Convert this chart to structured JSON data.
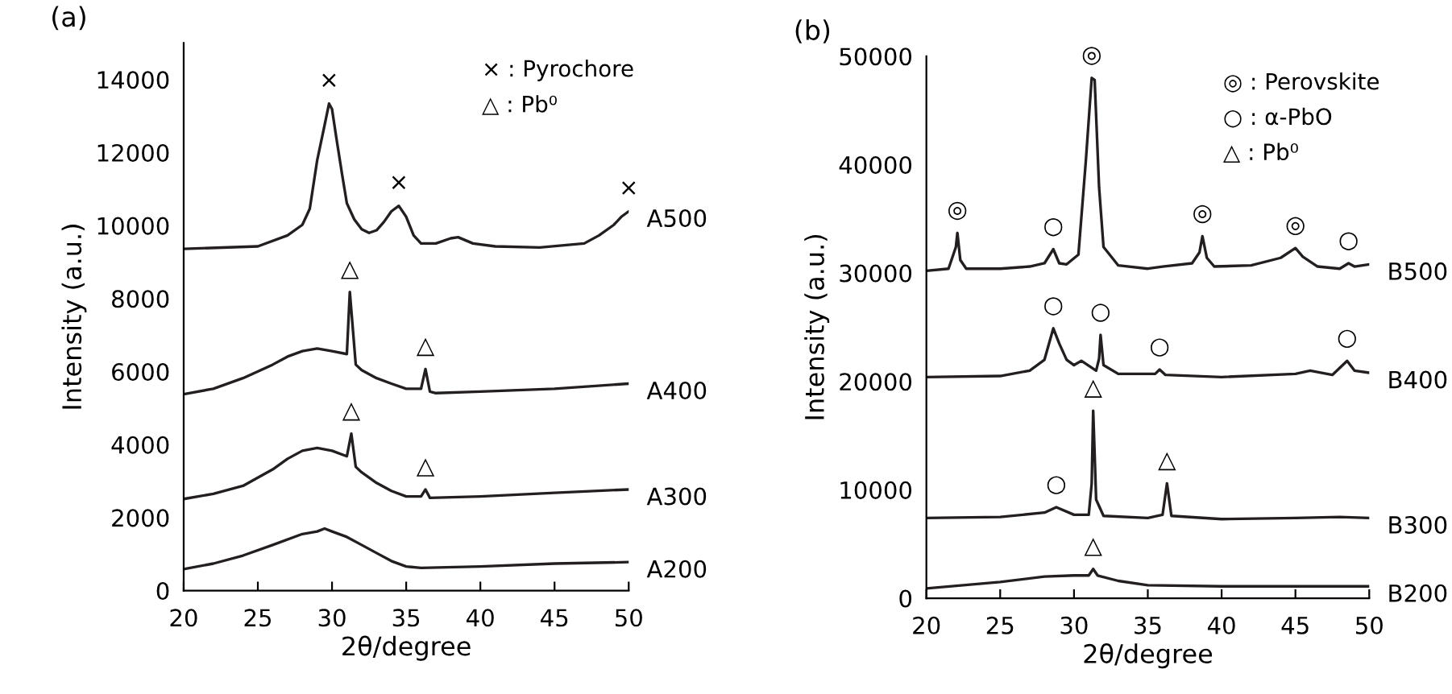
{
  "chart_data": [
    {
      "type": "line",
      "title": "(a)",
      "xlabel": "2θ/degree",
      "ylabel": "Intensity (a.u.)",
      "xlim": [
        20,
        50
      ],
      "xticks": [
        20,
        25,
        30,
        35,
        40,
        45,
        50
      ],
      "ylim": [
        0,
        15000
      ],
      "yticks": [
        0,
        2000,
        4000,
        6000,
        8000,
        10000,
        12000,
        14000
      ],
      "series": [
        {
          "name": "A500",
          "color": "#231f20",
          "x": [
            20,
            25,
            27,
            28,
            28.5,
            29,
            29.5,
            29.8,
            30,
            30.3,
            30.7,
            31,
            31.5,
            32,
            32.5,
            33,
            33.5,
            34,
            34.5,
            35,
            35.5,
            36,
            37,
            38,
            38.5,
            39.5,
            41,
            44,
            47,
            48,
            49,
            49.5,
            50
          ],
          "values": [
            9360,
            9430,
            9730,
            10020,
            10460,
            11790,
            12750,
            13340,
            13190,
            12380,
            11350,
            10610,
            10170,
            9900,
            9800,
            9870,
            10100,
            10390,
            10540,
            10240,
            9730,
            9510,
            9510,
            9650,
            9680,
            9510,
            9430,
            9400,
            9510,
            9730,
            10020,
            10240,
            10390
          ]
        },
        {
          "name": "A400",
          "color": "#231f20",
          "x": [
            20,
            22,
            24,
            26,
            27,
            28,
            29,
            30,
            31,
            31.2,
            31.6,
            32,
            33,
            34,
            35,
            36,
            36.3,
            36.6,
            37,
            40,
            45,
            50
          ],
          "values": [
            5380,
            5530,
            5820,
            6190,
            6410,
            6560,
            6630,
            6560,
            6480,
            8180,
            6190,
            6040,
            5820,
            5670,
            5530,
            5530,
            6070,
            5450,
            5410,
            5450,
            5530,
            5670
          ]
        },
        {
          "name": "A300",
          "color": "#231f20",
          "x": [
            20,
            22,
            24,
            26,
            27,
            28,
            29,
            30,
            31,
            31.3,
            31.6,
            32,
            33,
            34,
            35,
            36,
            36.3,
            36.6,
            40,
            45,
            50
          ],
          "values": [
            2510,
            2650,
            2870,
            3320,
            3610,
            3830,
            3910,
            3830,
            3680,
            4300,
            3390,
            3240,
            2950,
            2730,
            2580,
            2580,
            2770,
            2540,
            2580,
            2680,
            2770
          ]
        },
        {
          "name": "A200",
          "color": "#231f20",
          "x": [
            20,
            22,
            24,
            26,
            28,
            29,
            29.5,
            30,
            31,
            32,
            33,
            34,
            35,
            36,
            40,
            45,
            50
          ],
          "values": [
            590,
            740,
            960,
            1250,
            1550,
            1620,
            1700,
            1620,
            1470,
            1250,
            1030,
            810,
            660,
            620,
            660,
            740,
            780
          ]
        }
      ],
      "annotations": [
        {
          "text": "×",
          "x": 29.8,
          "y": 13340
        },
        {
          "text": "×",
          "x": 34.5,
          "y": 10540
        },
        {
          "text": "×",
          "x": 50,
          "y": 10390
        },
        {
          "text": "△",
          "x": 31.2,
          "y": 8180
        },
        {
          "text": "△",
          "x": 36.3,
          "y": 6070
        },
        {
          "text": "△",
          "x": 31.3,
          "y": 4300
        },
        {
          "text": "△",
          "x": 36.3,
          "y": 2770
        },
        "× : Pyrochore",
        "△ : Pb⁰"
      ]
    },
    {
      "type": "line",
      "title": "(b)",
      "xlabel": "2θ/degree",
      "ylabel": "Intensity (a.u.)",
      "xlim": [
        20,
        50
      ],
      "xticks": [
        20,
        25,
        30,
        35,
        40,
        45,
        50
      ],
      "ylim": [
        0,
        50000
      ],
      "yticks": [
        0,
        10000,
        20000,
        30000,
        40000,
        50000
      ],
      "series": [
        {
          "name": "B500",
          "color": "#231f20",
          "x": [
            20,
            21.5,
            22,
            22.1,
            22.3,
            22.7,
            25,
            27,
            28,
            28.6,
            29,
            29.5,
            30.3,
            30.8,
            31.2,
            31.4,
            31.7,
            32,
            33,
            35,
            36,
            38,
            38.5,
            38.7,
            39,
            39.5,
            42,
            44,
            45,
            45.5,
            46.5,
            48,
            48.6,
            49,
            50
          ],
          "values": [
            30200,
            30400,
            32400,
            33700,
            31200,
            30400,
            30400,
            30600,
            30900,
            32200,
            30900,
            30800,
            31700,
            40300,
            48000,
            47800,
            37900,
            32400,
            30700,
            30400,
            30600,
            30900,
            31900,
            33400,
            31400,
            30600,
            30700,
            31400,
            32300,
            31500,
            30600,
            30400,
            30900,
            30600,
            30800
          ]
        },
        {
          "name": "B400",
          "color": "#231f20",
          "x": [
            20,
            25,
            27,
            28,
            28.6,
            29,
            29.5,
            30,
            30.5,
            31.5,
            31.7,
            31.8,
            32,
            33,
            35.5,
            35.8,
            36.2,
            40,
            45,
            46,
            47.5,
            48.5,
            49,
            50
          ],
          "values": [
            20400,
            20500,
            21000,
            22000,
            24900,
            23500,
            22000,
            21500,
            21900,
            21000,
            22100,
            24300,
            21500,
            20700,
            20700,
            21100,
            20600,
            20400,
            20700,
            21000,
            20600,
            21900,
            21000,
            20800
          ]
        },
        {
          "name": "B300",
          "color": "#231f20",
          "x": [
            20,
            25,
            28,
            28.8,
            30,
            31,
            31.2,
            31.3,
            31.5,
            32,
            35,
            36,
            36.3,
            36.6,
            40,
            45,
            48,
            50
          ],
          "values": [
            7400,
            7500,
            7900,
            8400,
            7700,
            7700,
            10600,
            17300,
            9100,
            7600,
            7400,
            7700,
            10600,
            7600,
            7300,
            7400,
            7500,
            7400
          ]
        },
        {
          "name": "B200",
          "color": "#231f20",
          "x": [
            20,
            25,
            28,
            30,
            31,
            31.3,
            31.6,
            33,
            35,
            40,
            45,
            50
          ],
          "values": [
            900,
            1500,
            2000,
            2100,
            2100,
            2700,
            2100,
            1600,
            1200,
            1100,
            1100,
            1100
          ]
        }
      ],
      "annotations": [
        {
          "text": "◎",
          "x": 22.1,
          "y": 33700
        },
        {
          "text": "◎",
          "x": 31.2,
          "y": 48000
        },
        {
          "text": "◎",
          "x": 38.7,
          "y": 33400
        },
        {
          "text": "◎",
          "x": 45,
          "y": 32300
        },
        {
          "text": "○",
          "x": 28.6,
          "y": 32200
        },
        {
          "text": "○",
          "x": 48.6,
          "y": 30900
        },
        {
          "text": "○",
          "x": 28.6,
          "y": 24900
        },
        {
          "text": "○",
          "x": 31.8,
          "y": 24300
        },
        {
          "text": "○",
          "x": 35.8,
          "y": 21100
        },
        {
          "text": "○",
          "x": 48.5,
          "y": 21900
        },
        {
          "text": "○",
          "x": 28.8,
          "y": 8400
        },
        {
          "text": "△",
          "x": 31.3,
          "y": 17300
        },
        {
          "text": "△",
          "x": 36.3,
          "y": 10600
        },
        {
          "text": "△",
          "x": 31.3,
          "y": 2700
        },
        "◎ : Perovskite",
        "○ : α-PbO",
        "△ : Pb⁰"
      ]
    }
  ]
}
